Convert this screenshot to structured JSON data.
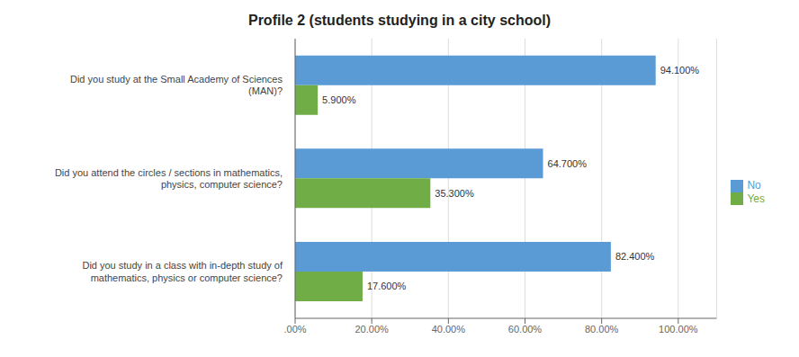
{
  "chart_data": {
    "type": "bar",
    "orientation": "horizontal",
    "title": "Profile 2 (students studying in a city school)",
    "categories": [
      "Did you study in a class with in-depth study of\nmathematics, physics or computer science?",
      "Did you attend the circles / sections in mathematics,\nphysics, computer science?",
      "Did you study at the Small Academy of Sciences\n(MAN)?"
    ],
    "series": [
      {
        "name": "No",
        "color": "#5B9BD5",
        "values": [
          82.4,
          64.7,
          94.1
        ],
        "value_labels": [
          "82.400%",
          "64.700%",
          "94.100%"
        ]
      },
      {
        "name": "Yes",
        "color": "#70AD47",
        "values": [
          17.6,
          35.3,
          5.9
        ],
        "value_labels": [
          "17.600%",
          "35.300%",
          "5.900%"
        ]
      }
    ],
    "xlim": [
      0,
      110
    ],
    "xticks": [
      {
        "value": 0,
        "label": ".00%"
      },
      {
        "value": 20,
        "label": "20.00%"
      },
      {
        "value": 40,
        "label": "40.00%"
      },
      {
        "value": 60,
        "label": "60.00%"
      },
      {
        "value": 80,
        "label": "80.00%"
      },
      {
        "value": 100,
        "label": "100.00%"
      }
    ],
    "grid": true,
    "legend": "right",
    "data_labels": true
  }
}
